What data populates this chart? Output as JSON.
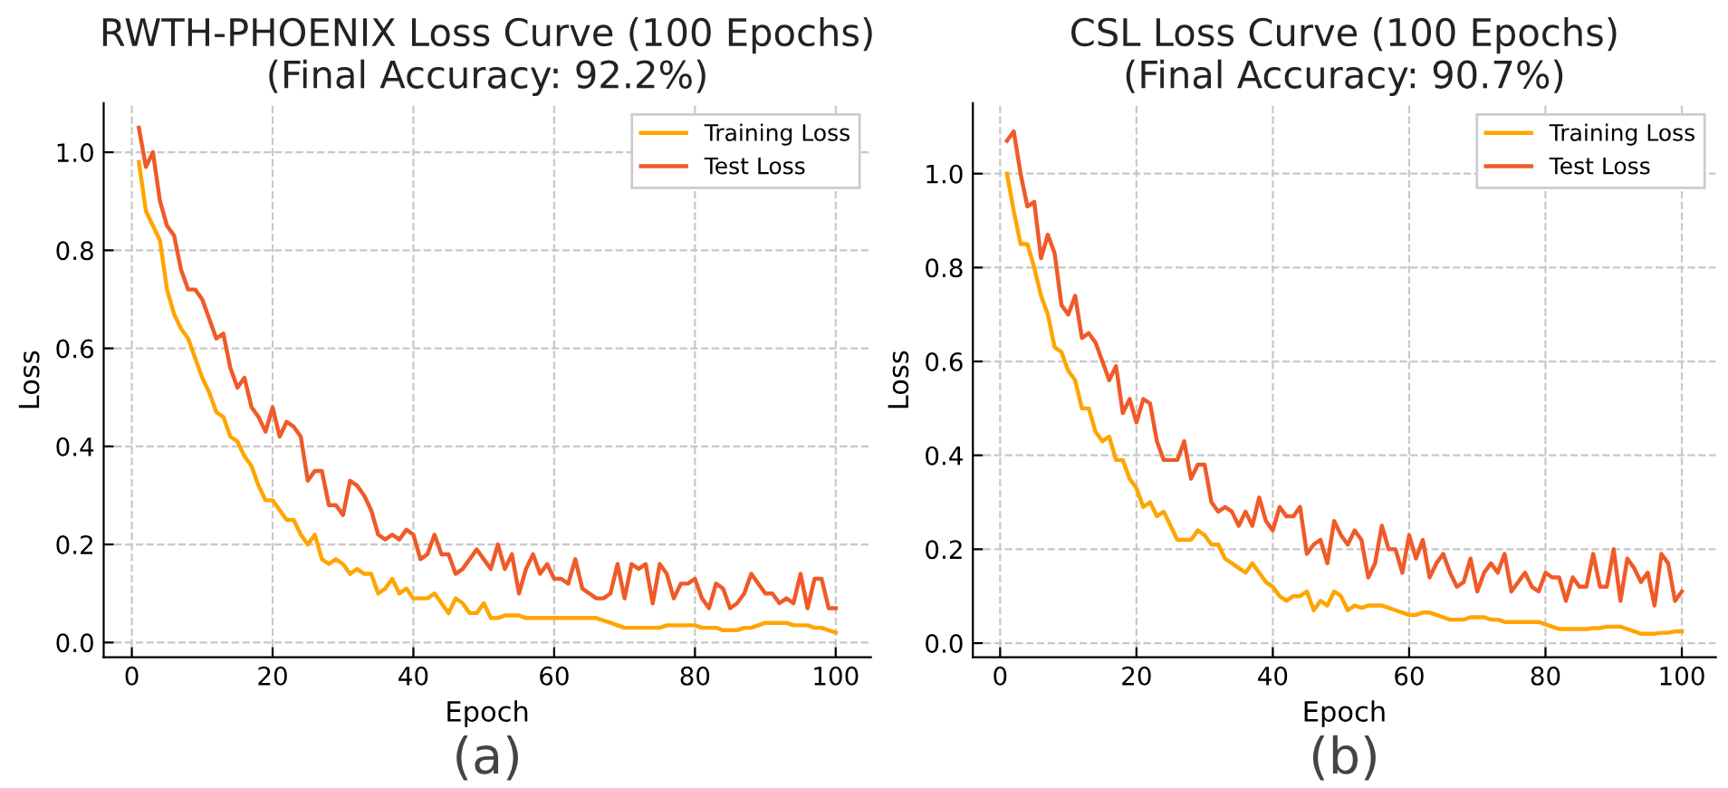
{
  "chart_data": [
    {
      "type": "line",
      "title": "RWTH-PHOENIX Loss Curve (100 Epochs)\n(Final Accuracy: 92.2%)",
      "xlabel": "Epoch",
      "ylabel": "Loss",
      "annotations": [
        "(a)"
      ],
      "x": [
        1,
        2,
        3,
        4,
        5,
        6,
        7,
        8,
        9,
        10,
        11,
        12,
        13,
        14,
        15,
        16,
        17,
        18,
        19,
        20,
        21,
        22,
        23,
        24,
        25,
        26,
        27,
        28,
        29,
        30,
        31,
        32,
        33,
        34,
        35,
        36,
        37,
        38,
        39,
        40,
        41,
        42,
        43,
        44,
        45,
        46,
        47,
        48,
        49,
        50,
        51,
        52,
        53,
        54,
        55,
        56,
        57,
        58,
        59,
        60,
        61,
        62,
        63,
        64,
        65,
        66,
        67,
        68,
        69,
        70,
        71,
        72,
        73,
        74,
        75,
        76,
        77,
        78,
        79,
        80,
        81,
        82,
        83,
        84,
        85,
        86,
        87,
        88,
        89,
        90,
        91,
        92,
        93,
        94,
        95,
        96,
        97,
        98,
        99,
        100
      ],
      "series": [
        {
          "name": "Training Loss",
          "color": "#ffa500",
          "values": [
            0.98,
            0.88,
            0.85,
            0.82,
            0.72,
            0.67,
            0.64,
            0.62,
            0.58,
            0.54,
            0.51,
            0.47,
            0.46,
            0.42,
            0.41,
            0.38,
            0.36,
            0.32,
            0.29,
            0.29,
            0.27,
            0.25,
            0.25,
            0.22,
            0.2,
            0.22,
            0.17,
            0.16,
            0.17,
            0.16,
            0.14,
            0.15,
            0.14,
            0.14,
            0.1,
            0.11,
            0.13,
            0.1,
            0.11,
            0.09,
            0.09,
            0.09,
            0.1,
            0.08,
            0.06,
            0.09,
            0.08,
            0.06,
            0.06,
            0.08,
            0.05,
            0.05,
            0.055,
            0.055,
            0.055,
            0.05,
            0.05,
            0.05,
            0.05,
            0.05,
            0.05,
            0.05,
            0.05,
            0.05,
            0.05,
            0.05,
            0.045,
            0.04,
            0.035,
            0.03,
            0.03,
            0.03,
            0.03,
            0.03,
            0.03,
            0.035,
            0.035,
            0.035,
            0.035,
            0.035,
            0.03,
            0.03,
            0.03,
            0.025,
            0.025,
            0.025,
            0.03,
            0.03,
            0.035,
            0.04,
            0.04,
            0.04,
            0.04,
            0.035,
            0.035,
            0.035,
            0.03,
            0.03,
            0.025,
            0.02
          ]
        },
        {
          "name": "Test Loss",
          "color": "#f05a28",
          "values": [
            1.05,
            0.97,
            1.0,
            0.9,
            0.85,
            0.83,
            0.76,
            0.72,
            0.72,
            0.7,
            0.66,
            0.62,
            0.63,
            0.56,
            0.52,
            0.54,
            0.48,
            0.46,
            0.43,
            0.48,
            0.42,
            0.45,
            0.44,
            0.42,
            0.33,
            0.35,
            0.35,
            0.28,
            0.28,
            0.26,
            0.33,
            0.32,
            0.3,
            0.27,
            0.22,
            0.21,
            0.22,
            0.21,
            0.23,
            0.22,
            0.17,
            0.18,
            0.22,
            0.18,
            0.18,
            0.14,
            0.15,
            0.17,
            0.19,
            0.17,
            0.15,
            0.2,
            0.15,
            0.18,
            0.1,
            0.15,
            0.18,
            0.14,
            0.16,
            0.13,
            0.13,
            0.12,
            0.17,
            0.11,
            0.1,
            0.09,
            0.09,
            0.1,
            0.16,
            0.09,
            0.16,
            0.15,
            0.16,
            0.08,
            0.16,
            0.14,
            0.09,
            0.12,
            0.12,
            0.13,
            0.09,
            0.07,
            0.12,
            0.11,
            0.07,
            0.08,
            0.1,
            0.14,
            0.12,
            0.1,
            0.1,
            0.08,
            0.09,
            0.08,
            0.14,
            0.07,
            0.13,
            0.13,
            0.07,
            0.07
          ]
        }
      ],
      "xlim": [
        -4,
        105
      ],
      "xticks": [
        0,
        20,
        40,
        60,
        80,
        100
      ],
      "ylim": [
        -0.03,
        1.1
      ],
      "yticks": [
        {
          "value": 0,
          "label": "0.0"
        },
        {
          "value": 0.2,
          "label": "0.2"
        },
        {
          "value": 0.4,
          "label": "0.4"
        },
        {
          "value": 0.6,
          "label": "0.6"
        },
        {
          "value": 0.8,
          "label": "0.8"
        },
        {
          "value": 1,
          "label": "1.0"
        }
      ],
      "grid": true,
      "legend": "top right",
      "marker": "none",
      "line_style": "solid"
    },
    {
      "type": "line",
      "title": "CSL Loss Curve (100 Epochs)\n(Final Accuracy: 90.7%)",
      "xlabel": "Epoch",
      "ylabel": "Loss",
      "annotations": [
        "(b)"
      ],
      "x": [
        1,
        2,
        3,
        4,
        5,
        6,
        7,
        8,
        9,
        10,
        11,
        12,
        13,
        14,
        15,
        16,
        17,
        18,
        19,
        20,
        21,
        22,
        23,
        24,
        25,
        26,
        27,
        28,
        29,
        30,
        31,
        32,
        33,
        34,
        35,
        36,
        37,
        38,
        39,
        40,
        41,
        42,
        43,
        44,
        45,
        46,
        47,
        48,
        49,
        50,
        51,
        52,
        53,
        54,
        55,
        56,
        57,
        58,
        59,
        60,
        61,
        62,
        63,
        64,
        65,
        66,
        67,
        68,
        69,
        70,
        71,
        72,
        73,
        74,
        75,
        76,
        77,
        78,
        79,
        80,
        81,
        82,
        83,
        84,
        85,
        86,
        87,
        88,
        89,
        90,
        91,
        92,
        93,
        94,
        95,
        96,
        97,
        98,
        99,
        100
      ],
      "series": [
        {
          "name": "Training Loss",
          "color": "#ffa500",
          "values": [
            1.0,
            0.92,
            0.85,
            0.85,
            0.8,
            0.74,
            0.7,
            0.63,
            0.62,
            0.58,
            0.56,
            0.5,
            0.5,
            0.45,
            0.43,
            0.44,
            0.39,
            0.39,
            0.35,
            0.33,
            0.29,
            0.3,
            0.27,
            0.28,
            0.25,
            0.22,
            0.22,
            0.22,
            0.24,
            0.23,
            0.21,
            0.21,
            0.18,
            0.17,
            0.16,
            0.15,
            0.17,
            0.15,
            0.13,
            0.12,
            0.1,
            0.09,
            0.1,
            0.1,
            0.11,
            0.07,
            0.09,
            0.08,
            0.11,
            0.1,
            0.07,
            0.08,
            0.075,
            0.08,
            0.08,
            0.08,
            0.075,
            0.07,
            0.065,
            0.06,
            0.06,
            0.065,
            0.065,
            0.06,
            0.055,
            0.05,
            0.05,
            0.05,
            0.055,
            0.055,
            0.055,
            0.05,
            0.05,
            0.045,
            0.045,
            0.045,
            0.045,
            0.045,
            0.045,
            0.04,
            0.035,
            0.03,
            0.03,
            0.03,
            0.03,
            0.03,
            0.032,
            0.032,
            0.035,
            0.035,
            0.035,
            0.03,
            0.025,
            0.02,
            0.02,
            0.02,
            0.022,
            0.022,
            0.025,
            0.025
          ]
        },
        {
          "name": "Test Loss",
          "color": "#f05a28",
          "values": [
            1.07,
            1.09,
            1.0,
            0.93,
            0.94,
            0.82,
            0.87,
            0.83,
            0.72,
            0.7,
            0.74,
            0.65,
            0.66,
            0.64,
            0.6,
            0.56,
            0.59,
            0.49,
            0.52,
            0.47,
            0.52,
            0.51,
            0.43,
            0.39,
            0.39,
            0.39,
            0.43,
            0.35,
            0.38,
            0.38,
            0.3,
            0.28,
            0.29,
            0.28,
            0.25,
            0.28,
            0.25,
            0.31,
            0.26,
            0.24,
            0.29,
            0.27,
            0.27,
            0.29,
            0.19,
            0.21,
            0.22,
            0.17,
            0.26,
            0.23,
            0.21,
            0.24,
            0.22,
            0.14,
            0.17,
            0.25,
            0.2,
            0.2,
            0.15,
            0.23,
            0.18,
            0.22,
            0.14,
            0.17,
            0.19,
            0.15,
            0.12,
            0.13,
            0.18,
            0.11,
            0.15,
            0.17,
            0.15,
            0.19,
            0.11,
            0.13,
            0.15,
            0.12,
            0.11,
            0.15,
            0.14,
            0.14,
            0.09,
            0.14,
            0.12,
            0.12,
            0.19,
            0.12,
            0.12,
            0.2,
            0.09,
            0.18,
            0.16,
            0.13,
            0.15,
            0.08,
            0.19,
            0.17,
            0.09,
            0.11
          ]
        }
      ],
      "xlim": [
        -4,
        105
      ],
      "xticks": [
        0,
        20,
        40,
        60,
        80,
        100
      ],
      "ylim": [
        -0.03,
        1.15
      ],
      "yticks": [
        {
          "value": 0,
          "label": "0.0"
        },
        {
          "value": 0.2,
          "label": "0.2"
        },
        {
          "value": 0.4,
          "label": "0.4"
        },
        {
          "value": 0.6,
          "label": "0.6"
        },
        {
          "value": 0.8,
          "label": "0.8"
        },
        {
          "value": 1,
          "label": "1.0"
        }
      ],
      "grid": true,
      "legend": "top right",
      "marker": "none",
      "line_style": "solid"
    }
  ]
}
